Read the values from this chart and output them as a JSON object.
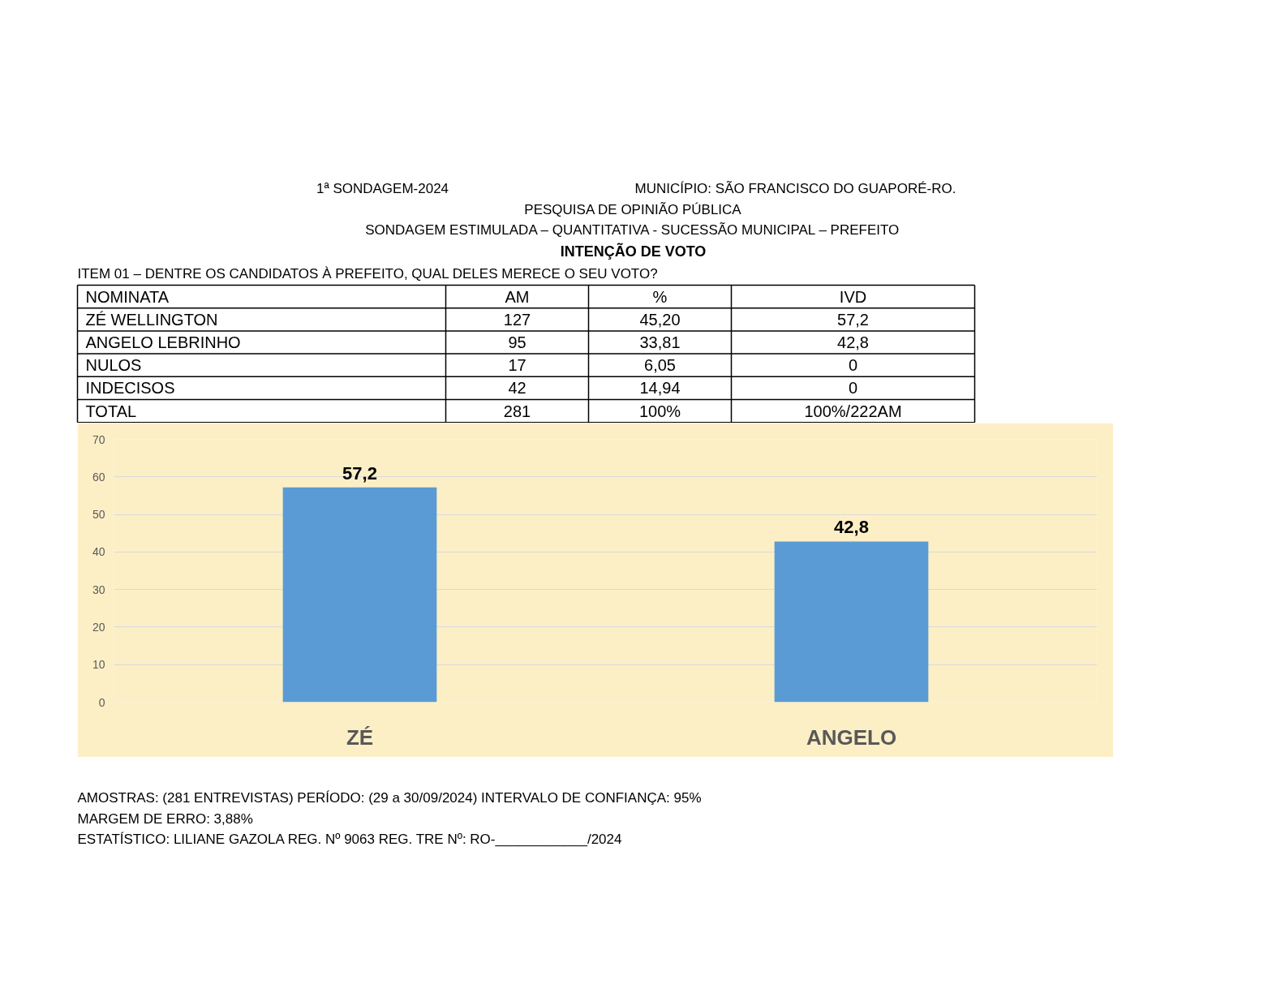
{
  "chart_data": {
    "type": "bar",
    "title": "INTENÇÃO DE VOTO",
    "categories": [
      "ZÉ",
      "ANGELO"
    ],
    "values": [
      57.2,
      42.8
    ],
    "color": "#5b9bd5",
    "value_labels": [
      "57,2",
      "42,8"
    ],
    "ylim": [
      0,
      70
    ],
    "yticks": [
      0,
      10,
      20,
      30,
      40,
      50,
      60,
      70
    ],
    "grid": "y",
    "annotations": [
      "1ª SONDAGEM-2024",
      "MUNICÍPIO: SÃO FRANCISCO DO GUAPORÉ-RO.",
      "PESQUISA DE OPINIÃO PÚBLICA",
      "SONDAGEM ESTIMULADA – QUANTITATIVA - SUCESSÃO MUNICIPAL – PREFEITO",
      "ITEM 01 – DENTRE OS CANDIDATOS À PREFEITO, QUAL DELES MERECE O SEU VOTO?",
      "NOMINATA\tAM\t%\tIVD",
      "ZÉ WELLINGTON\t127\t45,20\t57,2",
      "ANGELO LEBRINHO\t95\t33,81\t42,8",
      "NULOS\t17\t6,05\t0",
      "INDECISOS\t42\t14,94\t0",
      "TOTAL\t281\t100%\t100%/222AM",
      "AMOSTRAS: (281 ENTREVISTAS) PERÍODO: (29 a 30/09/2024)   INTERVALO DE CONFIANÇA: 95%",
      "MARGEM DE ERRO: 3,88%",
      "ESTATÍSTICO: LILIANE GAZOLA REG. Nº 9063   REG. TRE Nº: RO-____________/2024"
    ]
  }
}
